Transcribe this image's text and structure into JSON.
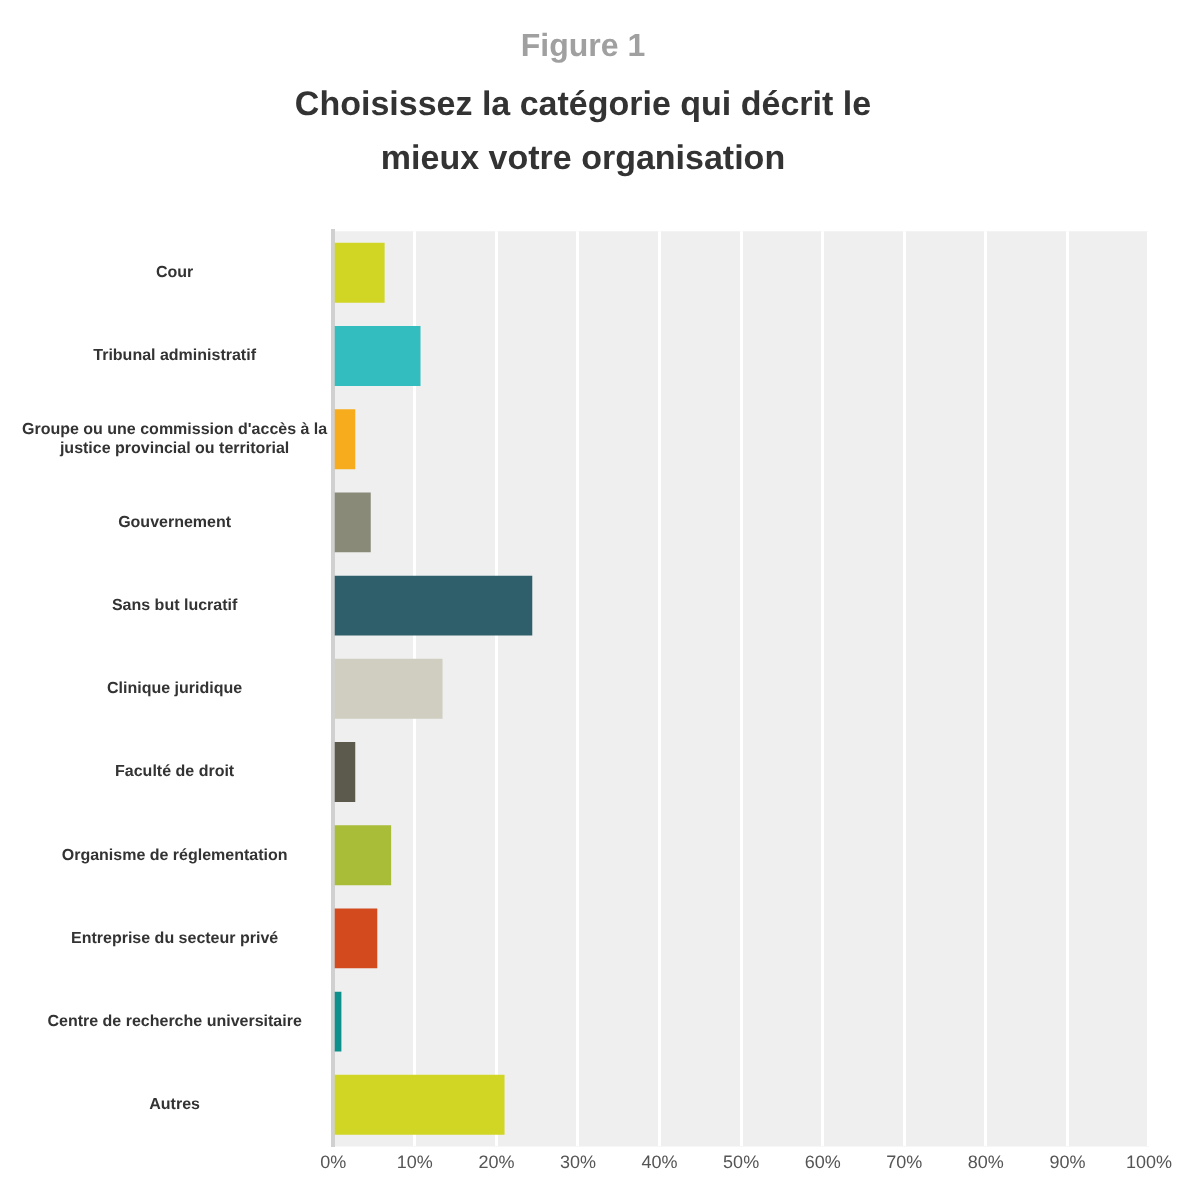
{
  "chart_data": {
    "type": "bar",
    "orientation": "horizontal",
    "title": "Figure 1",
    "subtitle": "Choisissez la catégorie qui décrit le mieux votre organisation",
    "categories": [
      "Cour",
      "Tribunal administratif",
      "Groupe ou une commission d'accès à la justice provincial ou territorial",
      "Gouvernement",
      "Sans but lucratif",
      "Clinique juridique",
      "Faculté de droit",
      "Organisme de réglementation",
      "Entreprise du secteur privé",
      "Centre de recherche universitaire",
      "Autres"
    ],
    "values": [
      6.3,
      10.7,
      2.7,
      4.6,
      24.4,
      13.4,
      2.7,
      7.1,
      5.4,
      1.0,
      21.0
    ],
    "colors": [
      "#d1d524",
      "#33bdbf",
      "#f7ac1d",
      "#8a8a78",
      "#2f5f6b",
      "#d0cec0",
      "#5b5a4d",
      "#a9bd38",
      "#d24a1e",
      "#0d8f8c",
      "#d1d524"
    ],
    "xlim": [
      0,
      100
    ],
    "xticks": [
      {
        "value": 0,
        "label": "0%"
      },
      {
        "value": 10,
        "label": "10%"
      },
      {
        "value": 20,
        "label": "20%"
      },
      {
        "value": 30,
        "label": "30%"
      },
      {
        "value": 40,
        "label": "40%"
      },
      {
        "value": 50,
        "label": "50%"
      },
      {
        "value": 60,
        "label": "60%"
      },
      {
        "value": 70,
        "label": "70%"
      },
      {
        "value": 80,
        "label": "80%"
      },
      {
        "value": 90,
        "label": "90%"
      },
      {
        "value": 100,
        "label": "100%"
      }
    ],
    "grid": "x",
    "legend": false
  }
}
